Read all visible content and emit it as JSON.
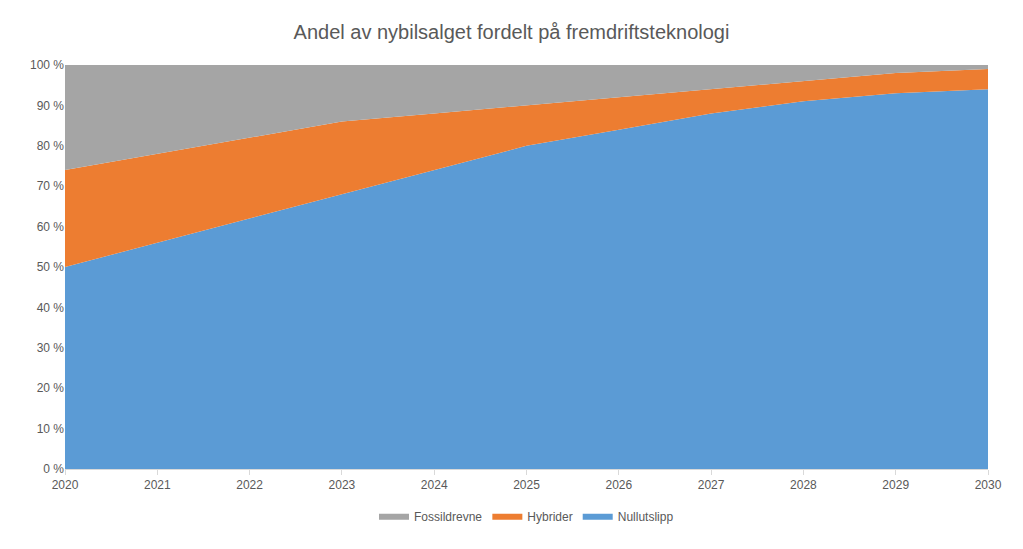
{
  "chart_data": {
    "type": "area",
    "stacked": true,
    "title": "Andel av nybilsalget fordelt på fremdriftsteknologi",
    "x": [
      2020,
      2021,
      2022,
      2023,
      2024,
      2025,
      2026,
      2027,
      2028,
      2029,
      2030
    ],
    "series": [
      {
        "name": "Nullutslipp",
        "color": "#5b9bd5",
        "values": [
          50,
          56,
          62,
          68,
          74,
          80,
          84,
          88,
          91,
          93,
          94
        ]
      },
      {
        "name": "Hybrider",
        "color": "#ed7d31",
        "values": [
          24,
          22,
          20,
          18,
          14,
          10,
          8,
          6,
          5,
          5,
          5
        ]
      },
      {
        "name": "Fossildrevne",
        "color": "#a5a5a5",
        "values": [
          26,
          22,
          18,
          14,
          12,
          10,
          8,
          6,
          4,
          2,
          1
        ]
      }
    ],
    "xlim": [
      2020,
      2030
    ],
    "xticks": [
      2020,
      2021,
      2022,
      2023,
      2024,
      2025,
      2026,
      2027,
      2028,
      2029,
      2030
    ],
    "ylim": [
      0,
      100
    ],
    "yticks": [
      {
        "value": 0,
        "label": "0 %"
      },
      {
        "value": 10,
        "label": "10 %"
      },
      {
        "value": 20,
        "label": "20 %"
      },
      {
        "value": 30,
        "label": "30 %"
      },
      {
        "value": 40,
        "label": "40 %"
      },
      {
        "value": 50,
        "label": "50 %"
      },
      {
        "value": 60,
        "label": "60 %"
      },
      {
        "value": 70,
        "label": "70 %"
      },
      {
        "value": 80,
        "label": "80 %"
      },
      {
        "value": 90,
        "label": "90 %"
      },
      {
        "value": 100,
        "label": "100 %"
      }
    ],
    "grid": false,
    "legend": "bottom"
  }
}
